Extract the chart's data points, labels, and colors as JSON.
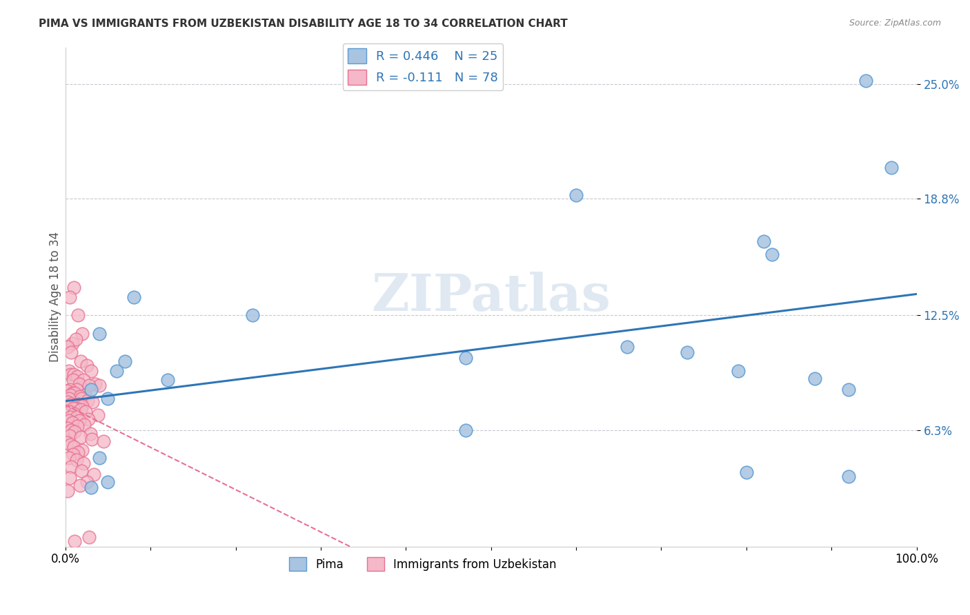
{
  "title": "PIMA VS IMMIGRANTS FROM UZBEKISTAN DISABILITY AGE 18 TO 34 CORRELATION CHART",
  "source": "Source: ZipAtlas.com",
  "ylabel": "Disability Age 18 to 34",
  "xlim": [
    0,
    100
  ],
  "ylim": [
    0,
    27
  ],
  "legend_r1": "R = 0.446",
  "legend_n1": "N = 25",
  "legend_r2": "R = -0.111",
  "legend_n2": "N = 78",
  "blue_color": "#a8c4e0",
  "blue_edge": "#5b9bd5",
  "pink_color": "#f4b8c8",
  "pink_edge": "#e87090",
  "trend_blue": "#2e75b6",
  "trend_pink": "#e87090",
  "background": "#ffffff",
  "grid_color": "#c8c8d0",
  "watermark": "ZIPatlas",
  "blue_x": [
    94,
    97,
    60,
    82,
    83,
    88,
    79,
    47,
    73,
    92,
    8,
    4,
    7,
    6,
    12,
    3,
    5,
    22,
    47,
    66,
    80,
    92,
    4,
    5,
    3
  ],
  "blue_y": [
    25.2,
    20.5,
    19.0,
    16.5,
    15.8,
    9.1,
    9.5,
    6.3,
    10.5,
    8.5,
    13.5,
    11.5,
    10.0,
    9.5,
    9.0,
    8.5,
    8.0,
    12.5,
    10.2,
    10.8,
    4.0,
    3.8,
    4.8,
    3.5,
    3.2
  ],
  "pink_x": [
    1.0,
    0.5,
    1.5,
    2.0,
    0.8,
    1.2,
    0.3,
    0.7,
    1.8,
    2.5,
    3.0,
    0.4,
    0.6,
    1.0,
    1.4,
    0.9,
    2.1,
    1.6,
    3.5,
    4.0,
    2.8,
    1.3,
    0.5,
    0.2,
    0.8,
    1.1,
    2.3,
    0.6,
    1.7,
    0.4,
    1.9,
    2.6,
    3.2,
    0.3,
    0.7,
    1.5,
    2.0,
    1.2,
    0.9,
    1.8,
    0.5,
    2.4,
    1.0,
    3.8,
    0.6,
    1.3,
    2.7,
    0.4,
    1.6,
    0.8,
    2.2,
    1.4,
    0.3,
    0.7,
    1.1,
    2.9,
    0.5,
    1.8,
    3.1,
    4.5,
    0.2,
    0.6,
    1.0,
    2.0,
    1.5,
    0.9,
    0.4,
    1.3,
    2.1,
    0.7,
    1.9,
    3.3,
    0.5,
    2.5,
    1.7,
    0.3,
    1.1,
    2.8
  ],
  "pink_y": [
    14.0,
    13.5,
    12.5,
    11.5,
    11.0,
    11.2,
    10.8,
    10.5,
    10.0,
    9.8,
    9.5,
    9.5,
    9.3,
    9.3,
    9.2,
    9.0,
    9.0,
    8.8,
    8.8,
    8.7,
    8.7,
    8.5,
    8.5,
    8.4,
    8.3,
    8.3,
    8.2,
    8.2,
    8.1,
    8.0,
    8.0,
    7.9,
    7.8,
    7.8,
    7.7,
    7.7,
    7.6,
    7.5,
    7.5,
    7.4,
    7.3,
    7.3,
    7.2,
    7.1,
    7.0,
    7.0,
    6.9,
    6.8,
    6.8,
    6.7,
    6.6,
    6.5,
    6.4,
    6.3,
    6.2,
    6.1,
    6.0,
    5.9,
    5.8,
    5.7,
    5.6,
    5.5,
    5.4,
    5.2,
    5.1,
    5.0,
    4.8,
    4.7,
    4.5,
    4.3,
    4.1,
    3.9,
    3.7,
    3.5,
    3.3,
    3.0,
    0.3,
    0.5
  ]
}
